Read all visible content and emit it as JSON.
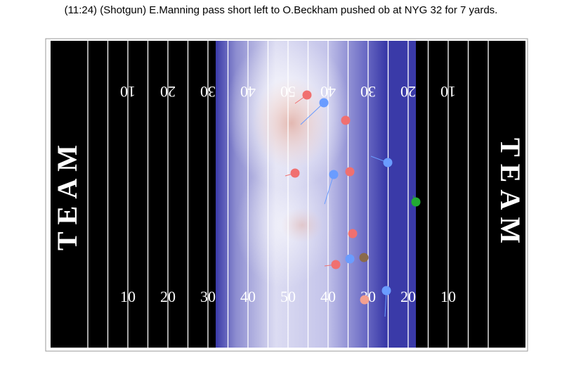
{
  "title": "(11:24) (Shotgun) E.Manning pass short left to O.Beckham pushed ob at NYG 32 for 7 yards.",
  "field": {
    "yard_numbers": [
      "10",
      "20",
      "30",
      "40",
      "50",
      "40",
      "30",
      "20",
      "10"
    ],
    "end_zone_labels": [
      "TEAM",
      "TEAM"
    ]
  }
}
